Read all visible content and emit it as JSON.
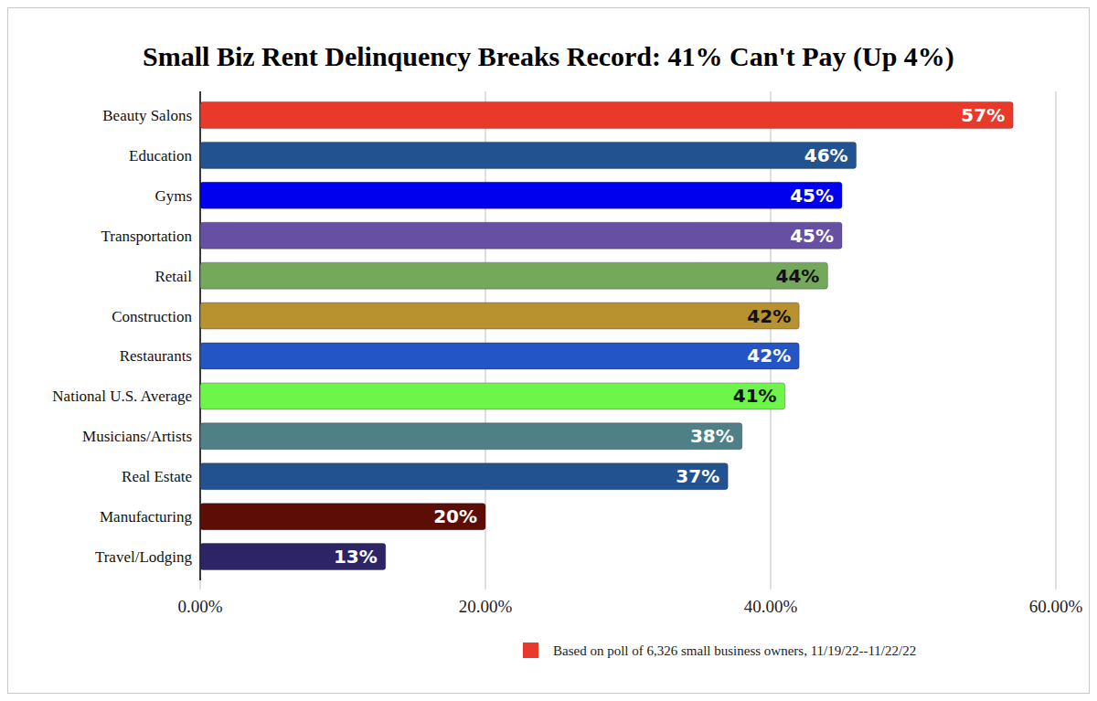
{
  "chart_data": {
    "type": "bar",
    "orientation": "horizontal",
    "title": "Small Biz Rent Delinquency Breaks Record: 41% Can't Pay (Up 4%)",
    "categories": [
      "Beauty Salons",
      "Education",
      "Gyms",
      "Transportation",
      "Retail",
      "Construction",
      "Restaurants",
      "National U.S. Average",
      "Musicians/Artists",
      "Real Estate",
      "Manufacturing",
      "Travel/Lodging"
    ],
    "values": [
      57,
      46,
      45,
      45,
      44,
      42,
      42,
      41,
      38,
      37,
      20,
      13
    ],
    "value_labels": [
      "57%",
      "46%",
      "45%",
      "45%",
      "44%",
      "42%",
      "42%",
      "41%",
      "38%",
      "37%",
      "20%",
      "13%"
    ],
    "colors": [
      "#e8392b",
      "#22528f",
      "#0000ee",
      "#6650a4",
      "#74a85a",
      "#b8922e",
      "#2455c4",
      "#6ef54a",
      "#4f7f87",
      "#22528f",
      "#5c0d06",
      "#2d2466"
    ],
    "xlim": [
      0,
      60
    ],
    "xticks": [
      {
        "value": 0,
        "label": "0.00%"
      },
      {
        "value": 20,
        "label": "20.00%"
      },
      {
        "value": 40,
        "label": "40.00%"
      },
      {
        "value": 60,
        "label": "60.00%"
      }
    ],
    "grid": true,
    "data_labels": true,
    "annotations": [
      "Based on poll of 6,326 small business owners, 11/19/22--11/22/22"
    ]
  }
}
